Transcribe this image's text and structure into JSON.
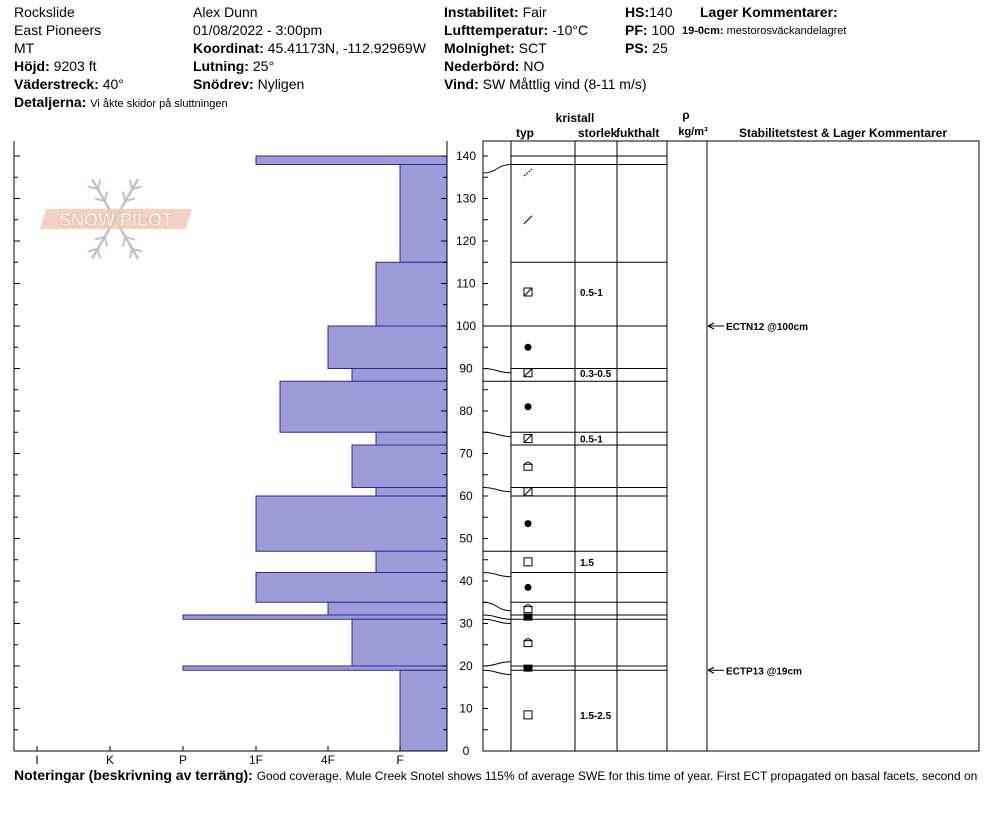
{
  "header": {
    "location": "Rockslide",
    "range": "East Pioneers",
    "state": "MT",
    "elevation_label": "Höjd:",
    "elevation": "9203 ft",
    "aspect_label": "Väderstreck:",
    "aspect": "40°",
    "details_label": "Detaljerna:",
    "details": "Vi åkte skidor på sluttningen",
    "observer": "Alex Dunn",
    "datetime": "01/08/2022 - 3:00pm",
    "coord_label": "Koordinat:",
    "coord": "45.41173N, -112.92969W",
    "slope_label": "Lutning:",
    "slope": "25°",
    "drift_label": "Snödrev:",
    "drift": "Nyligen",
    "instability_label": "Instabilitet:",
    "instability": "Fair",
    "airtemp_label": "Lufttemperatur:",
    "airtemp": "-10°C",
    "sky_label": "Molnighet:",
    "sky": "SCT",
    "precip_label": "Nederbörd:",
    "precip": "NO",
    "wind_label": "Vind:",
    "wind": "SW  Måttlig vind (8-11 m/s)",
    "hs_label": "HS:",
    "hs": "140",
    "pf_label": "PF:",
    "pf": "100",
    "ps_label": "PS:",
    "ps": "25",
    "layer_comments_label": "Lager Kommentarer:",
    "layer_comment_depth": "19-0cm:",
    "layer_comment": "mestorosväckandelagret"
  },
  "columns": {
    "crystal": "kristall",
    "type": "typ",
    "size": "storlek",
    "moisture": "fukthalt",
    "rho": "ρ",
    "density_unit": "kg/m³",
    "stability": "Stabilitetstest & Lager Kommentarer"
  },
  "logo_text": "SNOW PILOT",
  "notes_label": "Noteringar (beskrivning av terräng):",
  "notes": "Good coverage. Mule Creek Snotel shows 115% of average SWE for this time of year. First ECT propagated on basal facets, second on",
  "chart_data": {
    "type": "snow-profile",
    "hardness_axis": [
      "I",
      "K",
      "P",
      "1F",
      "4F",
      "F"
    ],
    "depth_ticks": [
      0,
      10,
      20,
      30,
      40,
      50,
      60,
      70,
      80,
      90,
      100,
      110,
      120,
      130,
      140
    ],
    "depth_range": [
      0,
      140
    ],
    "hardness_layers": [
      {
        "top": 140,
        "bottom": 138,
        "hardness": "1F"
      },
      {
        "top": 138,
        "bottom": 115,
        "hardness": "F"
      },
      {
        "top": 115,
        "bottom": 100,
        "hardness": "F+"
      },
      {
        "top": 100,
        "bottom": 90,
        "hardness": "4F"
      },
      {
        "top": 90,
        "bottom": 87,
        "hardness": "4F-"
      },
      {
        "top": 87,
        "bottom": 75,
        "hardness": "1F+"
      },
      {
        "top": 75,
        "bottom": 72,
        "hardness": "F+"
      },
      {
        "top": 72,
        "bottom": 62,
        "hardness": "4F-"
      },
      {
        "top": 62,
        "bottom": 60,
        "hardness": "F+"
      },
      {
        "top": 60,
        "bottom": 47,
        "hardness": "1F"
      },
      {
        "top": 47,
        "bottom": 42,
        "hardness": "F+"
      },
      {
        "top": 42,
        "bottom": 35,
        "hardness": "1F"
      },
      {
        "top": 35,
        "bottom": 32,
        "hardness": "4F"
      },
      {
        "top": 32,
        "bottom": 31,
        "hardness": "P"
      },
      {
        "top": 31,
        "bottom": 20,
        "hardness": "4F-"
      },
      {
        "top": 20,
        "bottom": 19,
        "hardness": "P"
      },
      {
        "top": 19,
        "bottom": 0,
        "hardness": "F"
      }
    ],
    "layer_boundaries": [
      140,
      138,
      115,
      100,
      90,
      87,
      75,
      72,
      62,
      60,
      47,
      42,
      35,
      32,
      31,
      20,
      19,
      0
    ],
    "grain_rows": [
      {
        "depth": 136,
        "symbol": "slash-small",
        "size": ""
      },
      {
        "depth": 125,
        "symbol": "slash",
        "size": ""
      },
      {
        "depth": 108,
        "symbol": "box-slash",
        "size": "0.5-1"
      },
      {
        "depth": 95,
        "symbol": "dot",
        "size": ""
      },
      {
        "depth": 89,
        "symbol": "box-slash",
        "size": "0.3-0.5"
      },
      {
        "depth": 81,
        "symbol": "dot",
        "size": ""
      },
      {
        "depth": 73.5,
        "symbol": "box-slash",
        "size": "0.5-1"
      },
      {
        "depth": 67,
        "symbol": "box-dome",
        "size": ""
      },
      {
        "depth": 61,
        "symbol": "box-slash",
        "size": ""
      },
      {
        "depth": 53.5,
        "symbol": "dot",
        "size": ""
      },
      {
        "depth": 44.5,
        "symbol": "square",
        "size": "1.5"
      },
      {
        "depth": 38.5,
        "symbol": "dot",
        "size": ""
      },
      {
        "depth": 33.5,
        "symbol": "box-dome",
        "size": ""
      },
      {
        "depth": 31.5,
        "symbol": "square-filled",
        "size": ""
      },
      {
        "depth": 25.5,
        "symbol": "box-dome",
        "size": ""
      },
      {
        "depth": 19.5,
        "symbol": "square-filled",
        "size": ""
      },
      {
        "depth": 8.5,
        "symbol": "square",
        "size": "1.5-2.5"
      }
    ],
    "stability_tests": [
      {
        "depth": 100,
        "label": "ECTN12 @100cm"
      },
      {
        "depth": 19,
        "label": "ECTP13 @19cm"
      }
    ]
  }
}
